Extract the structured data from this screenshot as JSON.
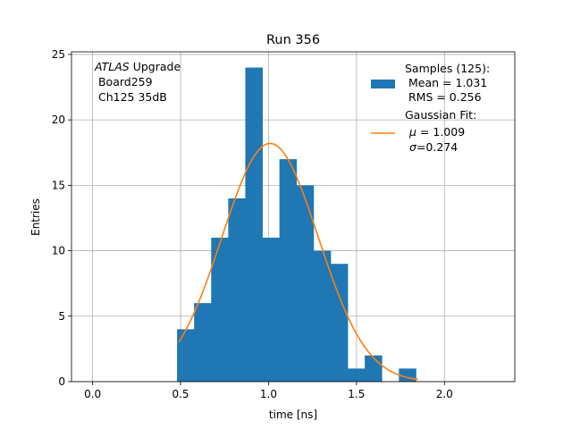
{
  "chart_data": {
    "type": "bar",
    "title": "Run 356",
    "xlabel": "time [ns]",
    "ylabel": "Entries",
    "xlim": [
      -0.12,
      2.4
    ],
    "ylim": [
      0,
      25.2
    ],
    "grid": true,
    "x_ticks": [
      {
        "value": 0.0,
        "label": "0.0"
      },
      {
        "value": 0.5,
        "label": "0.5"
      },
      {
        "value": 1.0,
        "label": "1.0"
      },
      {
        "value": 1.5,
        "label": "1.5"
      },
      {
        "value": 2.0,
        "label": "2.0"
      }
    ],
    "y_ticks": [
      {
        "value": 0,
        "label": "0"
      },
      {
        "value": 5,
        "label": "5"
      },
      {
        "value": 10,
        "label": "10"
      },
      {
        "value": 15,
        "label": "15"
      },
      {
        "value": 20,
        "label": "20"
      },
      {
        "value": 25,
        "label": "25"
      }
    ],
    "bin_edges": [
      0.48,
      0.577,
      0.674,
      0.771,
      0.868,
      0.965,
      1.062,
      1.159,
      1.256,
      1.353,
      1.45,
      1.547,
      1.644,
      1.741,
      1.838
    ],
    "counts": [
      4,
      6,
      11,
      14,
      24,
      11,
      17,
      15,
      10,
      9,
      1,
      2,
      0,
      1
    ],
    "bar_color": "#1f77b4",
    "fit": {
      "type": "gaussian",
      "mu": 1.009,
      "sigma": 0.274,
      "amplitude": 18.2,
      "x_range": [
        0.49,
        1.85
      ],
      "color": "#ff7f0e"
    },
    "annotation": {
      "italic": "ATLAS",
      "rest": " Upgrade",
      "line2": " Board259",
      "line3": " Ch125 35dB"
    },
    "legend": {
      "placement": "top-right",
      "samples_title": "Samples (125):",
      "samples_mean": " Mean = 1.031",
      "samples_rms": " RMS = 0.256",
      "fit_title": "Gaussian Fit:",
      "fit_mu_symbol": "μ",
      "fit_mu_value": " = 1.009",
      "fit_sigma_symbol": "σ",
      "fit_sigma_value": "=0.274"
    }
  }
}
